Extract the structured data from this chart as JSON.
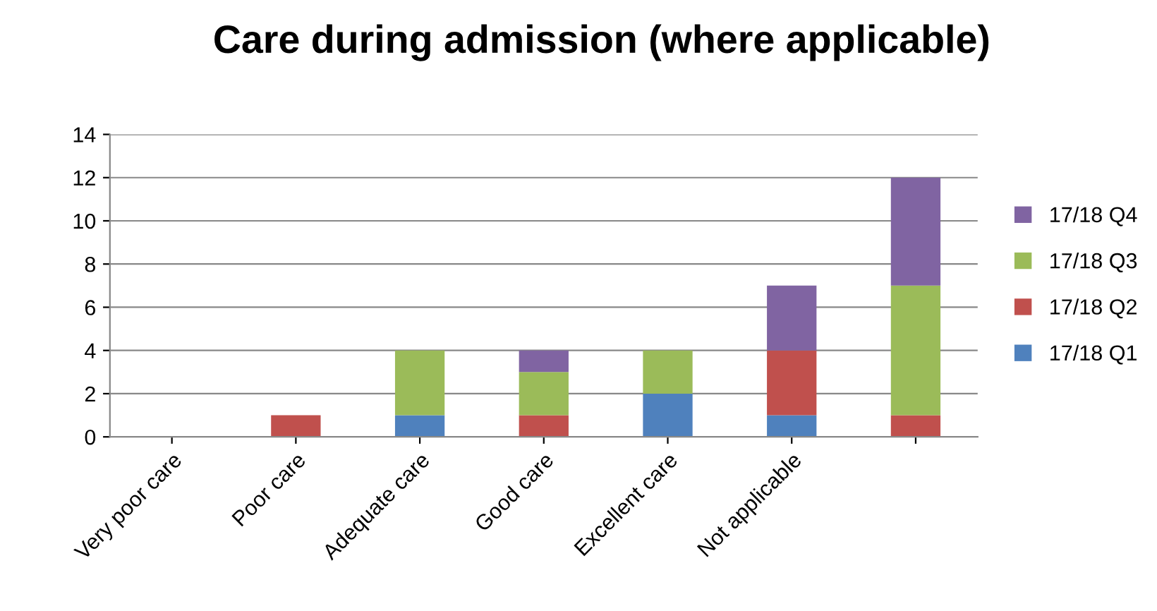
{
  "chart_data": {
    "type": "bar",
    "stacked": true,
    "title": "Care during admission (where applicable)",
    "categories": [
      "Very poor care",
      "Poor care",
      "Adequate care",
      "Good care",
      "Excellent care",
      "Not applicable",
      null
    ],
    "series": [
      {
        "name": "17/18 Q1",
        "color": "#4f81bd",
        "values": [
          0,
          0,
          1,
          0,
          2,
          1,
          0
        ]
      },
      {
        "name": "17/18 Q2",
        "color": "#c0504d",
        "values": [
          0,
          1,
          0,
          1,
          0,
          3,
          1
        ]
      },
      {
        "name": "17/18 Q3",
        "color": "#9bbb59",
        "values": [
          0,
          0,
          3,
          2,
          2,
          0,
          6
        ]
      },
      {
        "name": "17/18 Q4",
        "color": "#8064a2",
        "values": [
          0,
          0,
          0,
          1,
          0,
          3,
          5
        ]
      }
    ],
    "ylim": [
      0,
      14
    ],
    "yticks": [
      0,
      2,
      4,
      6,
      8,
      10,
      12,
      14
    ],
    "grid": "y",
    "legend": "right"
  }
}
